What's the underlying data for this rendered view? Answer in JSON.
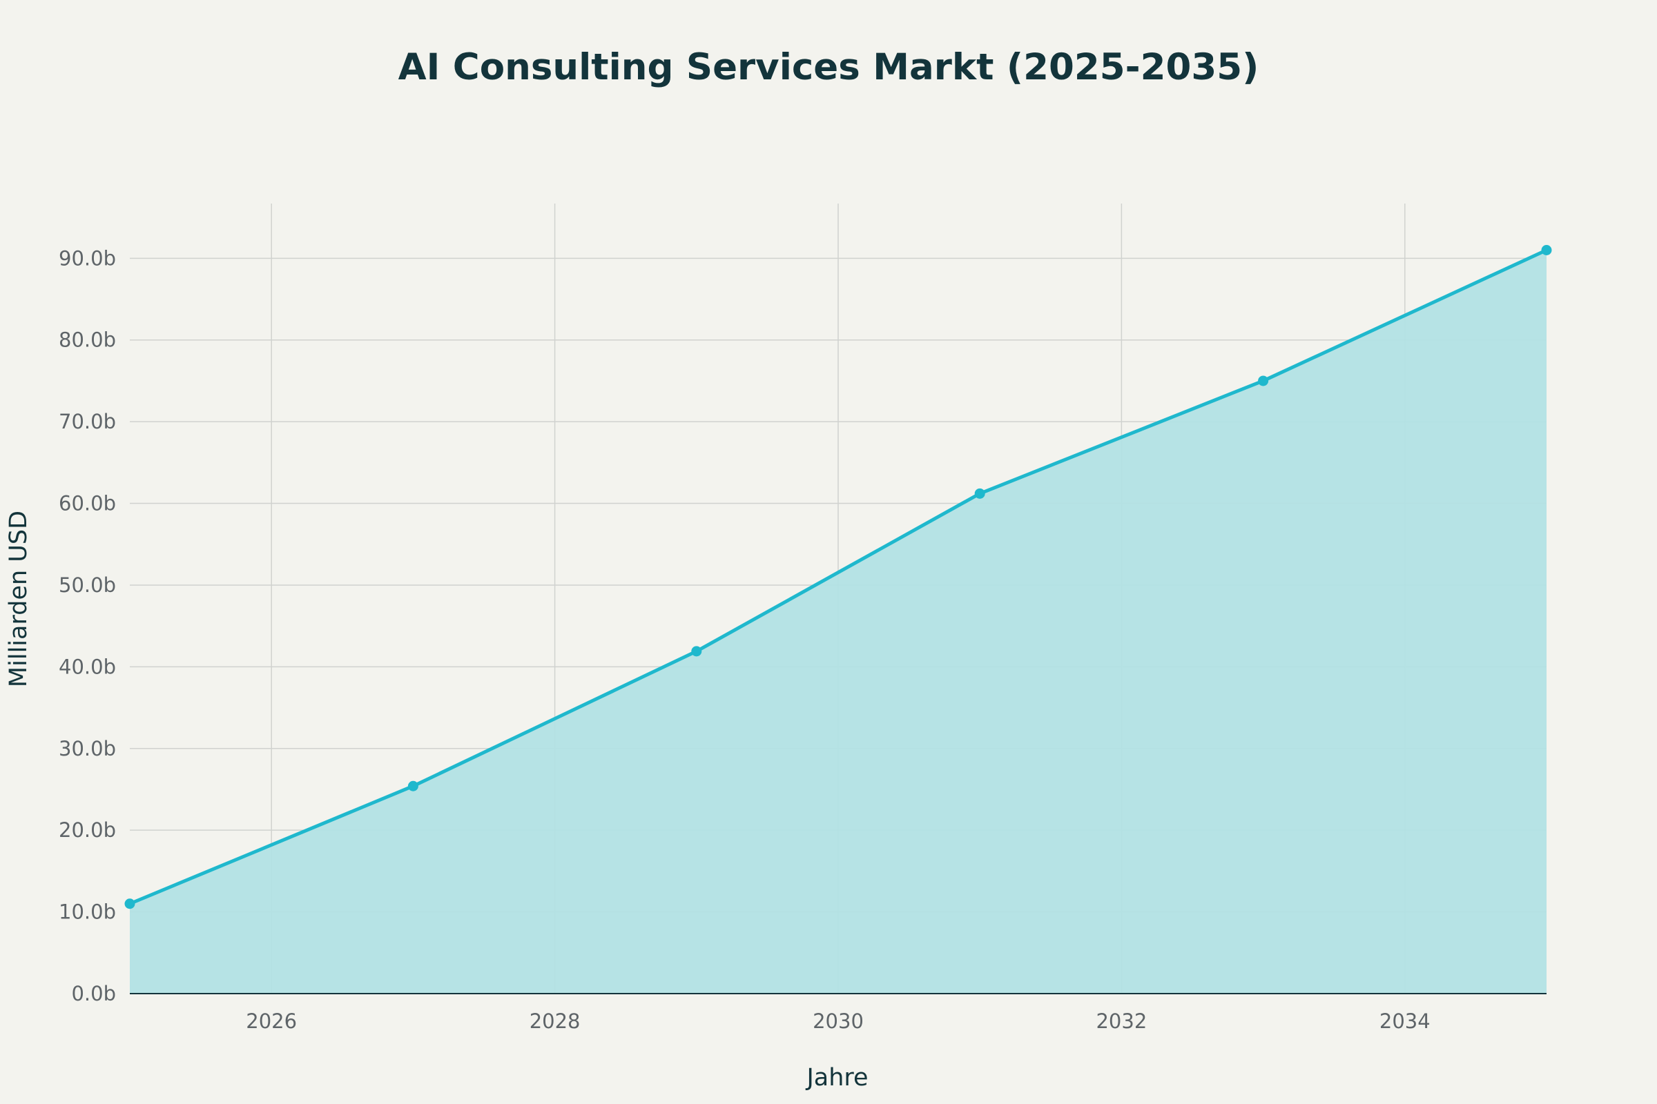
{
  "chart_data": {
    "type": "area",
    "title": "AI Consulting Services Markt (2025-2035)",
    "xlabel": "Jahre",
    "ylabel": "Milliarden USD",
    "x": [
      2025,
      2027,
      2029,
      2031,
      2033,
      2035
    ],
    "values": [
      11.0,
      25.4,
      41.9,
      61.2,
      75.0,
      91.0
    ],
    "xlim": [
      2025,
      2035
    ],
    "ylim": [
      0,
      96.7
    ],
    "x_ticks": [
      2026,
      2028,
      2030,
      2032,
      2034
    ],
    "x_tick_labels": [
      "2026",
      "2028",
      "2030",
      "2032",
      "2034"
    ],
    "y_ticks": [
      0,
      10,
      20,
      30,
      40,
      50,
      60,
      70,
      80,
      90
    ],
    "y_tick_labels": [
      "0.0b",
      "10.0b",
      "20.0b",
      "30.0b",
      "40.0b",
      "50.0b",
      "60.0b",
      "70.0b",
      "80.0b",
      "90.0b"
    ],
    "grid": true,
    "legend": false,
    "colors": {
      "line": "#1FB8CD",
      "fill": "#B2E2E4",
      "grid": "#D0D2CF",
      "axis": "#13343B",
      "background": "#F3F3EE"
    }
  }
}
